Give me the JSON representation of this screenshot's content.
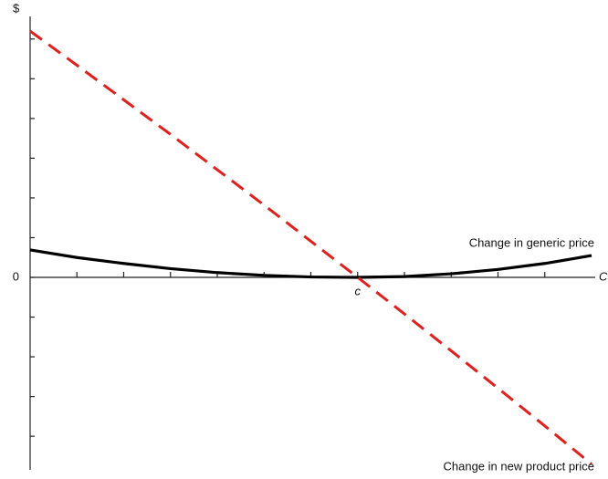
{
  "chart_data": {
    "type": "line",
    "y_label": "$",
    "x_label": "C",
    "x": [
      0,
      1,
      2,
      3,
      4,
      5,
      6,
      7,
      8,
      9,
      10,
      11,
      12
    ],
    "series": [
      {
        "name": "Change in generic price",
        "color": "#000000",
        "dash": false,
        "values": [
          0.69,
          0.5,
          0.35,
          0.22,
          0.12,
          0.05,
          0.01,
          0,
          0.02,
          0.09,
          0.2,
          0.35,
          0.55
        ]
      },
      {
        "name": "Change in new product price",
        "color": "#e0201c",
        "dash": true,
        "values": [
          6.2,
          5.34,
          4.47,
          3.6,
          2.71,
          1.82,
          0.91,
          0,
          -0.92,
          -1.85,
          -2.79,
          -3.74,
          -4.7
        ]
      }
    ],
    "xlim": [
      0,
      12
    ],
    "ylim": [
      -4.8,
      6.5
    ],
    "xticks": [
      {
        "value": 7,
        "label": "c"
      }
    ],
    "yticks": [
      0
    ],
    "x_minor_ticks": [
      1,
      2,
      3,
      4,
      5,
      6,
      8,
      9,
      10,
      11
    ],
    "y_minor_ticks": [
      -4,
      -3,
      -2,
      -1,
      1,
      2,
      3,
      4,
      5,
      6
    ]
  }
}
